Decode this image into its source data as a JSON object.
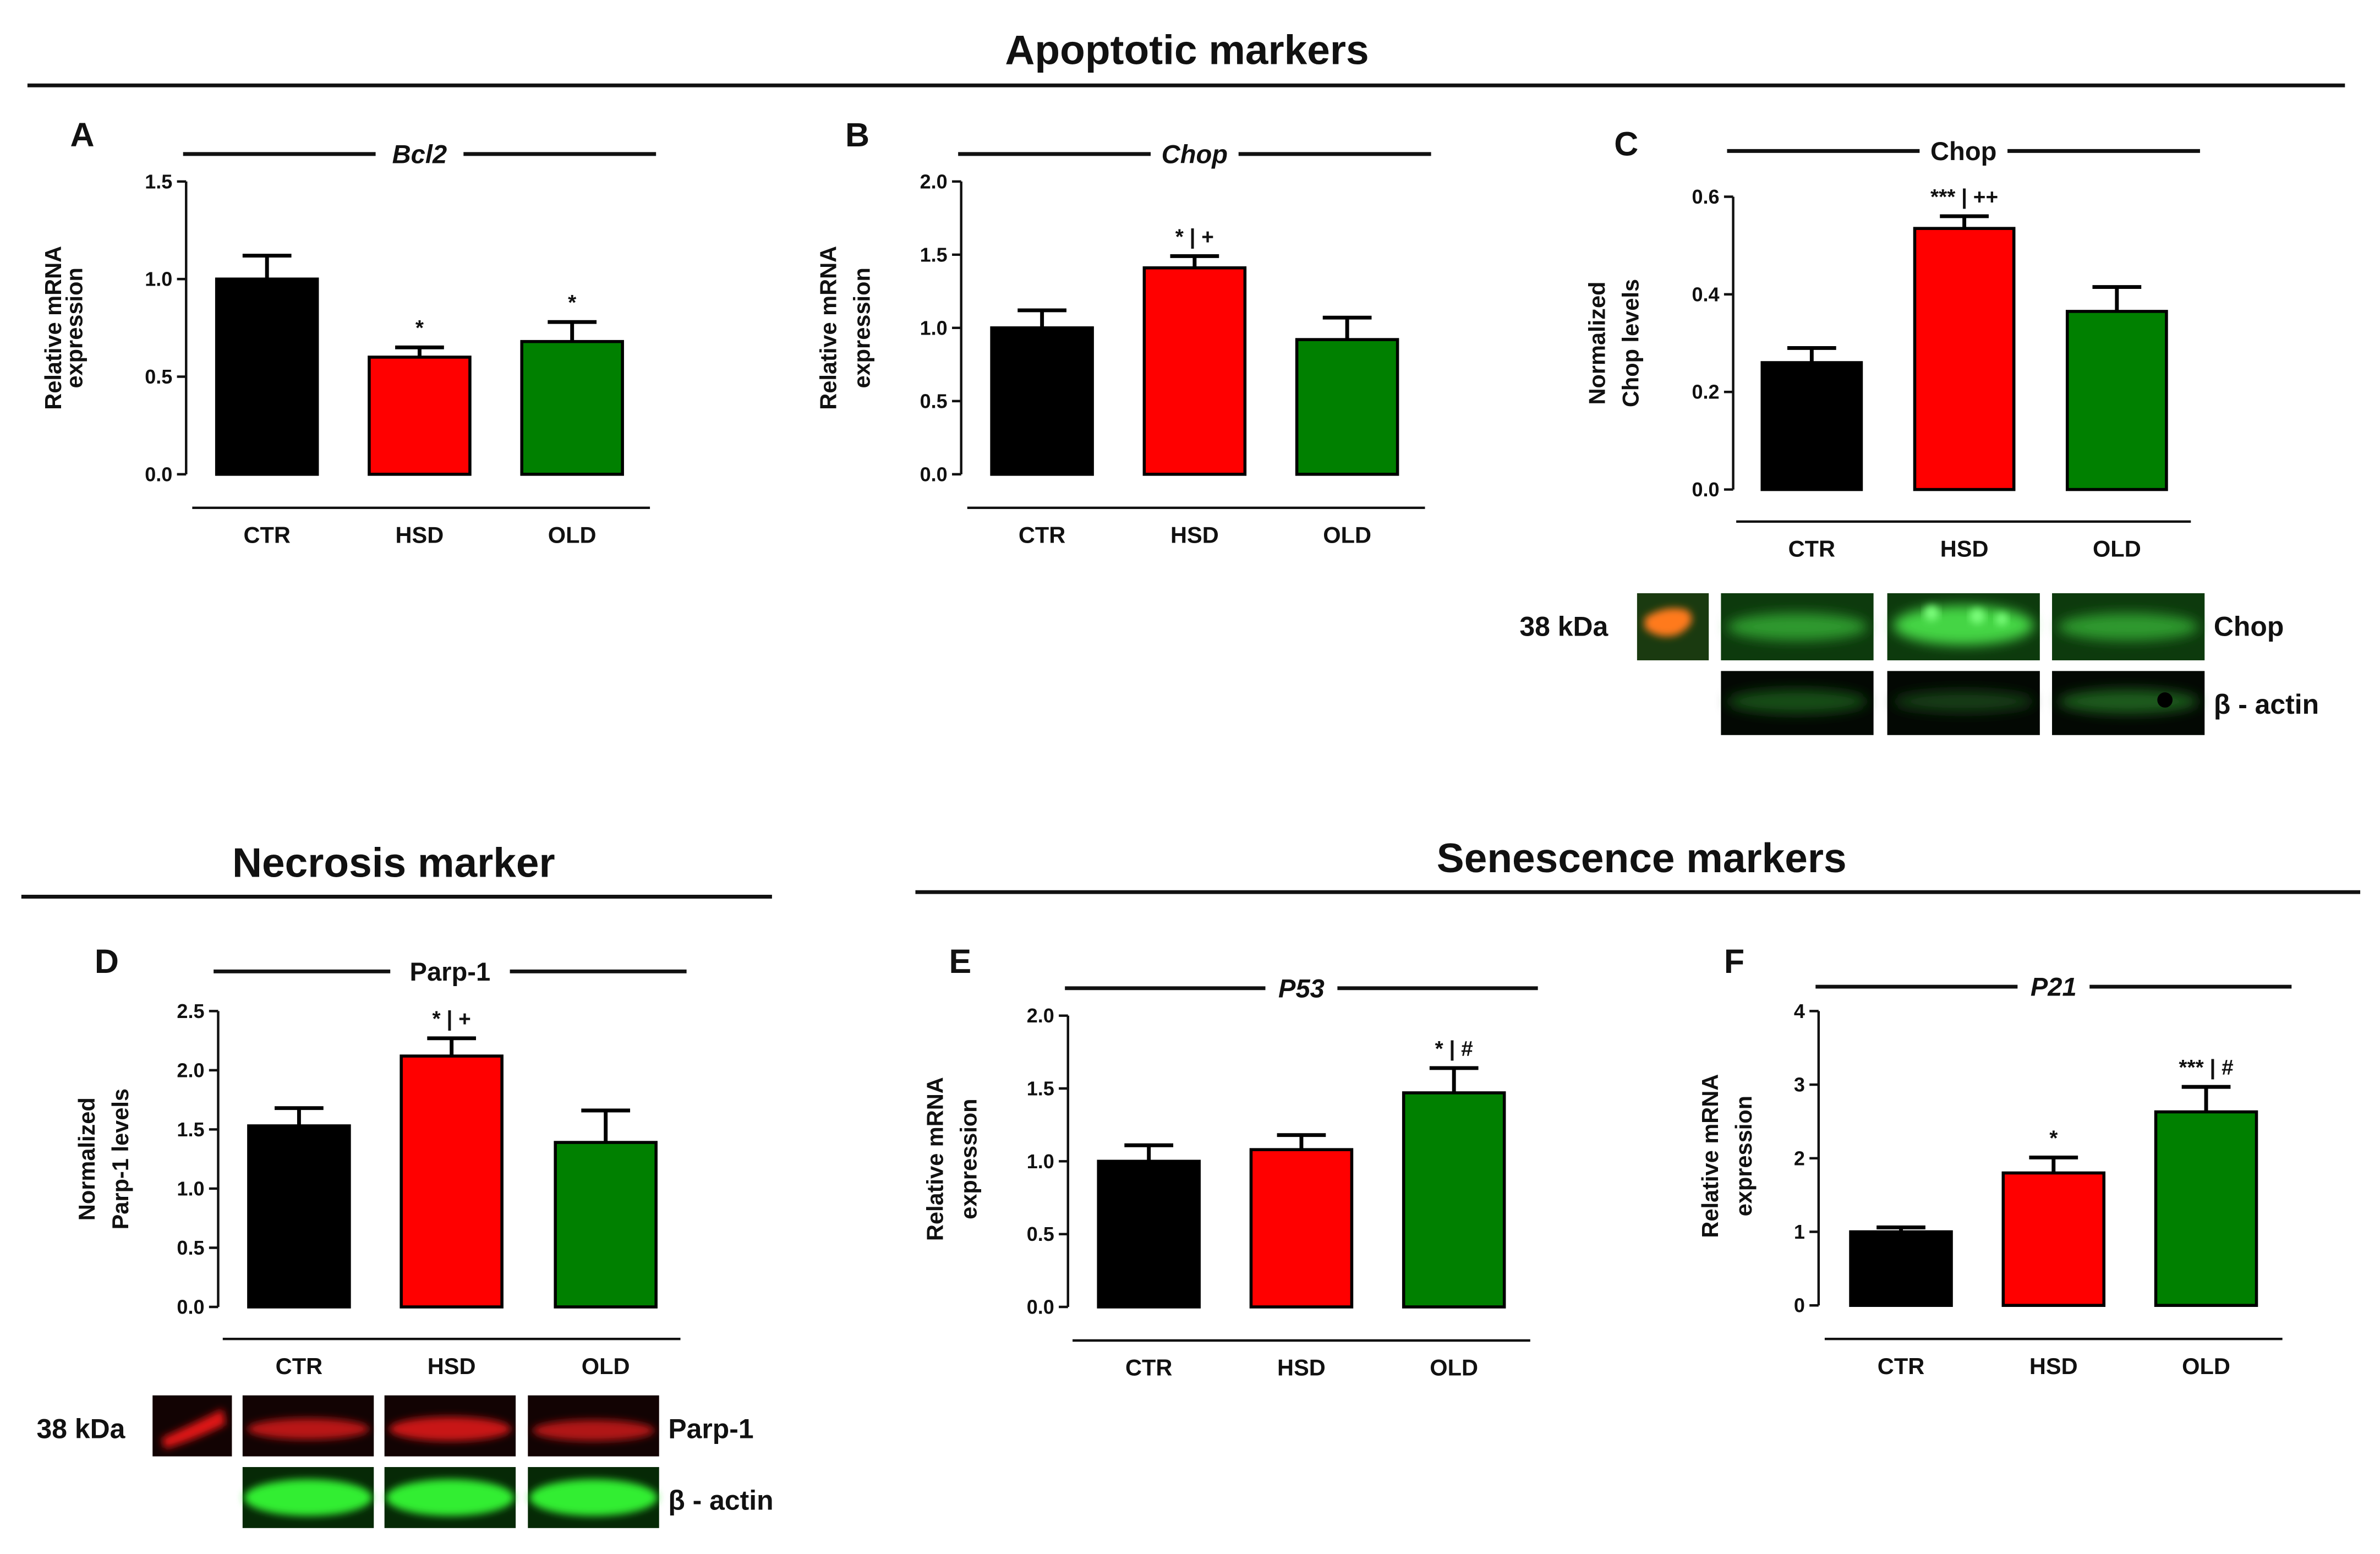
{
  "colors": {
    "CTR": "#000000",
    "HSD": "#ff0000",
    "OLD": "#008000"
  },
  "headers": {
    "apoptotic": "Apoptotic markers",
    "necrosis": "Necrosis marker",
    "senescence": "Senescence markers"
  },
  "blots": {
    "C": {
      "kda": "38 kDa",
      "target": "Chop",
      "loading": "β - actin"
    },
    "D": {
      "kda": "38 kDa",
      "target": "Parp-1",
      "loading": "β - actin"
    }
  },
  "chart_data": [
    {
      "panel": "A",
      "type": "bar",
      "title": "Bcl2",
      "italic": true,
      "ylabel": [
        "Relative mRNA",
        "expression"
      ],
      "categories": [
        "CTR",
        "HSD",
        "OLD"
      ],
      "values": [
        1.0,
        0.6,
        0.68
      ],
      "errors": [
        0.12,
        0.05,
        0.1
      ],
      "sig": [
        "",
        "*",
        "*"
      ],
      "ylim": [
        0,
        1.5
      ],
      "yticks": [
        0.0,
        0.5,
        1.0,
        1.5
      ],
      "ytick_labels": [
        "0.0",
        "0.5",
        "1.0",
        "1.5"
      ]
    },
    {
      "panel": "B",
      "type": "bar",
      "title": "Chop",
      "italic": true,
      "ylabel": [
        "Relative mRNA",
        "expression"
      ],
      "categories": [
        "CTR",
        "HSD",
        "OLD"
      ],
      "values": [
        1.0,
        1.41,
        0.92
      ],
      "errors": [
        0.12,
        0.08,
        0.15
      ],
      "sig": [
        "",
        "* | +",
        ""
      ],
      "ylim": [
        0,
        2.0
      ],
      "yticks": [
        0.0,
        0.5,
        1.0,
        1.5,
        2.0
      ],
      "ytick_labels": [
        "0.0",
        "0.5",
        "1.0",
        "1.5",
        "2.0"
      ]
    },
    {
      "panel": "C",
      "type": "bar",
      "title": "Chop",
      "italic": false,
      "ylabel": [
        "Normalized",
        "Chop levels"
      ],
      "categories": [
        "CTR",
        "HSD",
        "OLD"
      ],
      "values": [
        0.26,
        0.535,
        0.365
      ],
      "errors": [
        0.03,
        0.025,
        0.05
      ],
      "sig": [
        "",
        "*** | ++",
        ""
      ],
      "ylim": [
        0,
        0.6
      ],
      "yticks": [
        0.0,
        0.2,
        0.4,
        0.6
      ],
      "ytick_labels": [
        "0.0",
        "0.2",
        "0.4",
        "0.6"
      ]
    },
    {
      "panel": "D",
      "type": "bar",
      "title": "Parp-1",
      "italic": false,
      "ylabel": [
        "Normalized",
        "Parp-1 levels"
      ],
      "categories": [
        "CTR",
        "HSD",
        "OLD"
      ],
      "values": [
        1.53,
        2.12,
        1.39
      ],
      "errors": [
        0.15,
        0.15,
        0.27
      ],
      "sig": [
        "",
        "* | +",
        ""
      ],
      "ylim": [
        0,
        2.5
      ],
      "yticks": [
        0.0,
        0.5,
        1.0,
        1.5,
        2.0,
        2.5
      ],
      "ytick_labels": [
        "0.0",
        "0.5",
        "1.0",
        "1.5",
        "2.0",
        "2.5"
      ]
    },
    {
      "panel": "E",
      "type": "bar",
      "title": "P53",
      "italic": true,
      "ylabel": [
        "Relative mRNA",
        "expression"
      ],
      "categories": [
        "CTR",
        "HSD",
        "OLD"
      ],
      "values": [
        1.0,
        1.08,
        1.47
      ],
      "errors": [
        0.11,
        0.1,
        0.17
      ],
      "sig": [
        "",
        "",
        "* | #"
      ],
      "ylim": [
        0,
        2.0
      ],
      "yticks": [
        0.0,
        0.5,
        1.0,
        1.5,
        2.0
      ],
      "ytick_labels": [
        "0.0",
        "0.5",
        "1.0",
        "1.5",
        "2.0"
      ]
    },
    {
      "panel": "F",
      "type": "bar",
      "title": "P21",
      "italic": true,
      "ylabel": [
        "Relative mRNA",
        "expression"
      ],
      "categories": [
        "CTR",
        "HSD",
        "OLD"
      ],
      "values": [
        1.0,
        1.8,
        2.63
      ],
      "errors": [
        0.06,
        0.21,
        0.34
      ],
      "sig": [
        "",
        "*",
        "*** | #"
      ],
      "ylim": [
        0,
        4
      ],
      "yticks": [
        0,
        1,
        2,
        3,
        4
      ],
      "ytick_labels": [
        "0",
        "1",
        "2",
        "3",
        "4"
      ]
    }
  ]
}
